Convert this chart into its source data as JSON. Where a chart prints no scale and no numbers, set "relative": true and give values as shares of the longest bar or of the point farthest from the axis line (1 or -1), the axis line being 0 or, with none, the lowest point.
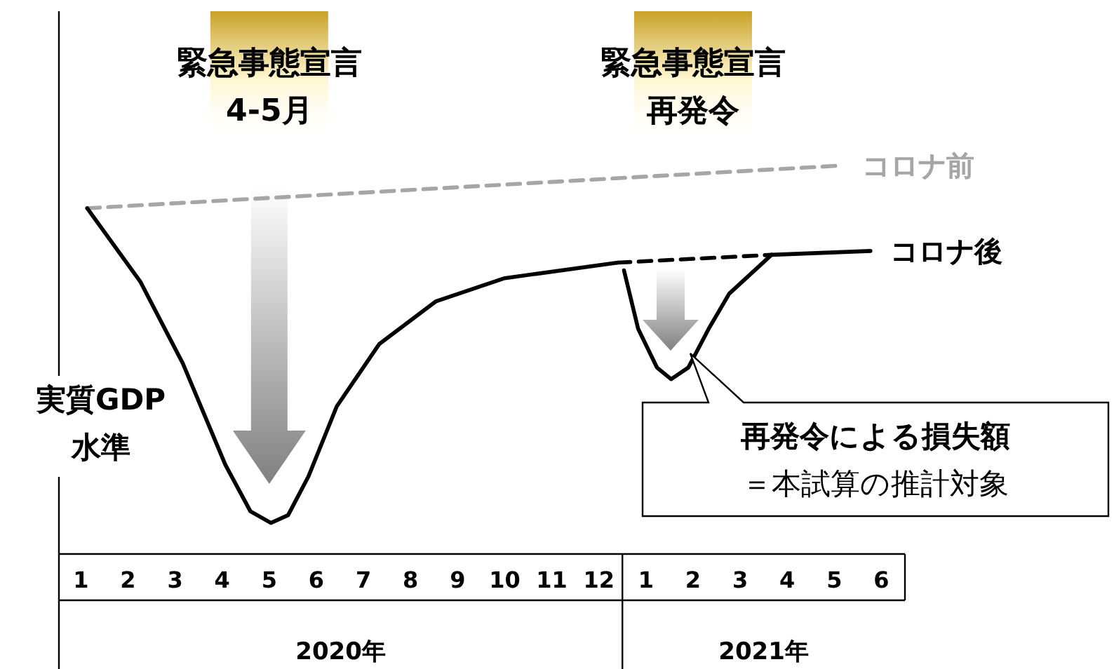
{
  "chart_data": {
    "type": "line",
    "relative": true,
    "ylabel": "実質GDP\n水準",
    "xlim": [
      "2019-12-17",
      "2021-06-16"
    ],
    "xticks": [
      {
        "value": "2020-01",
        "label": "1"
      },
      {
        "value": "2020-02",
        "label": "2"
      },
      {
        "value": "2020-03",
        "label": "3"
      },
      {
        "value": "2020-04",
        "label": "4"
      },
      {
        "value": "2020-05",
        "label": "5"
      },
      {
        "value": "2020-06",
        "label": "6"
      },
      {
        "value": "2020-07",
        "label": "7"
      },
      {
        "value": "2020-08",
        "label": "8"
      },
      {
        "value": "2020-09",
        "label": "9"
      },
      {
        "value": "2020-10",
        "label": "10"
      },
      {
        "value": "2020-11",
        "label": "11"
      },
      {
        "value": "2020-12",
        "label": "12"
      },
      {
        "value": "2021-01",
        "label": "1"
      },
      {
        "value": "2021-02",
        "label": "2"
      },
      {
        "value": "2021-03",
        "label": "3"
      },
      {
        "value": "2021-04",
        "label": "4"
      },
      {
        "value": "2021-05",
        "label": "5"
      },
      {
        "value": "2021-06",
        "label": "6"
      }
    ],
    "series": [
      {
        "name": "コロナ前",
        "color": "#a6a6a6",
        "line_style": "dashed",
        "x": [
          "2020-01-05",
          "2021-05-06"
        ],
        "values": [
          0.89,
          1
        ]
      },
      {
        "color": "#000000",
        "line_style": "solid",
        "x": [
          "2020-01-05",
          "2020-02-09",
          "2020-03-06",
          "2020-04-03",
          "2020-04-19",
          "2020-05-02",
          "2020-05-13",
          "2020-05-26",
          "2020-06-14",
          "2020-07-11",
          "2020-08-17",
          "2020-10-01",
          "2020-12-13"
        ],
        "values": [
          0.89,
          0.7,
          0.49,
          0.23,
          0.11,
          0.08,
          0.1,
          0.2,
          0.38,
          0.54,
          0.65,
          0.71,
          0.75
        ]
      },
      {
        "color": "#000000",
        "line_style": "dashed",
        "x": [
          "2020-12-13",
          "2021-03-21"
        ],
        "values": [
          0.75,
          0.77
        ]
      },
      {
        "name": "コロナ後",
        "color": "#000000",
        "line_style": "solid",
        "x": [
          "2021-03-21",
          "2021-05-24"
        ],
        "values": [
          0.77,
          0.78
        ]
      },
      {
        "color": "#000000",
        "line_style": "solid",
        "x": [
          "2020-12-17",
          "2020-12-26",
          "2021-01-08",
          "2021-01-17",
          "2021-01-28",
          "2021-02-11",
          "2021-02-24",
          "2021-03-21"
        ],
        "values": [
          0.73,
          0.58,
          0.48,
          0.45,
          0.48,
          0.58,
          0.67,
          0.77
        ]
      }
    ],
    "annotations": [
      "緊急事態宣言\n4-5月",
      "緊急事態宣言再発令",
      "再発令による損失額＝本試算の推計対象",
      "2020年",
      "2021年"
    ]
  }
}
